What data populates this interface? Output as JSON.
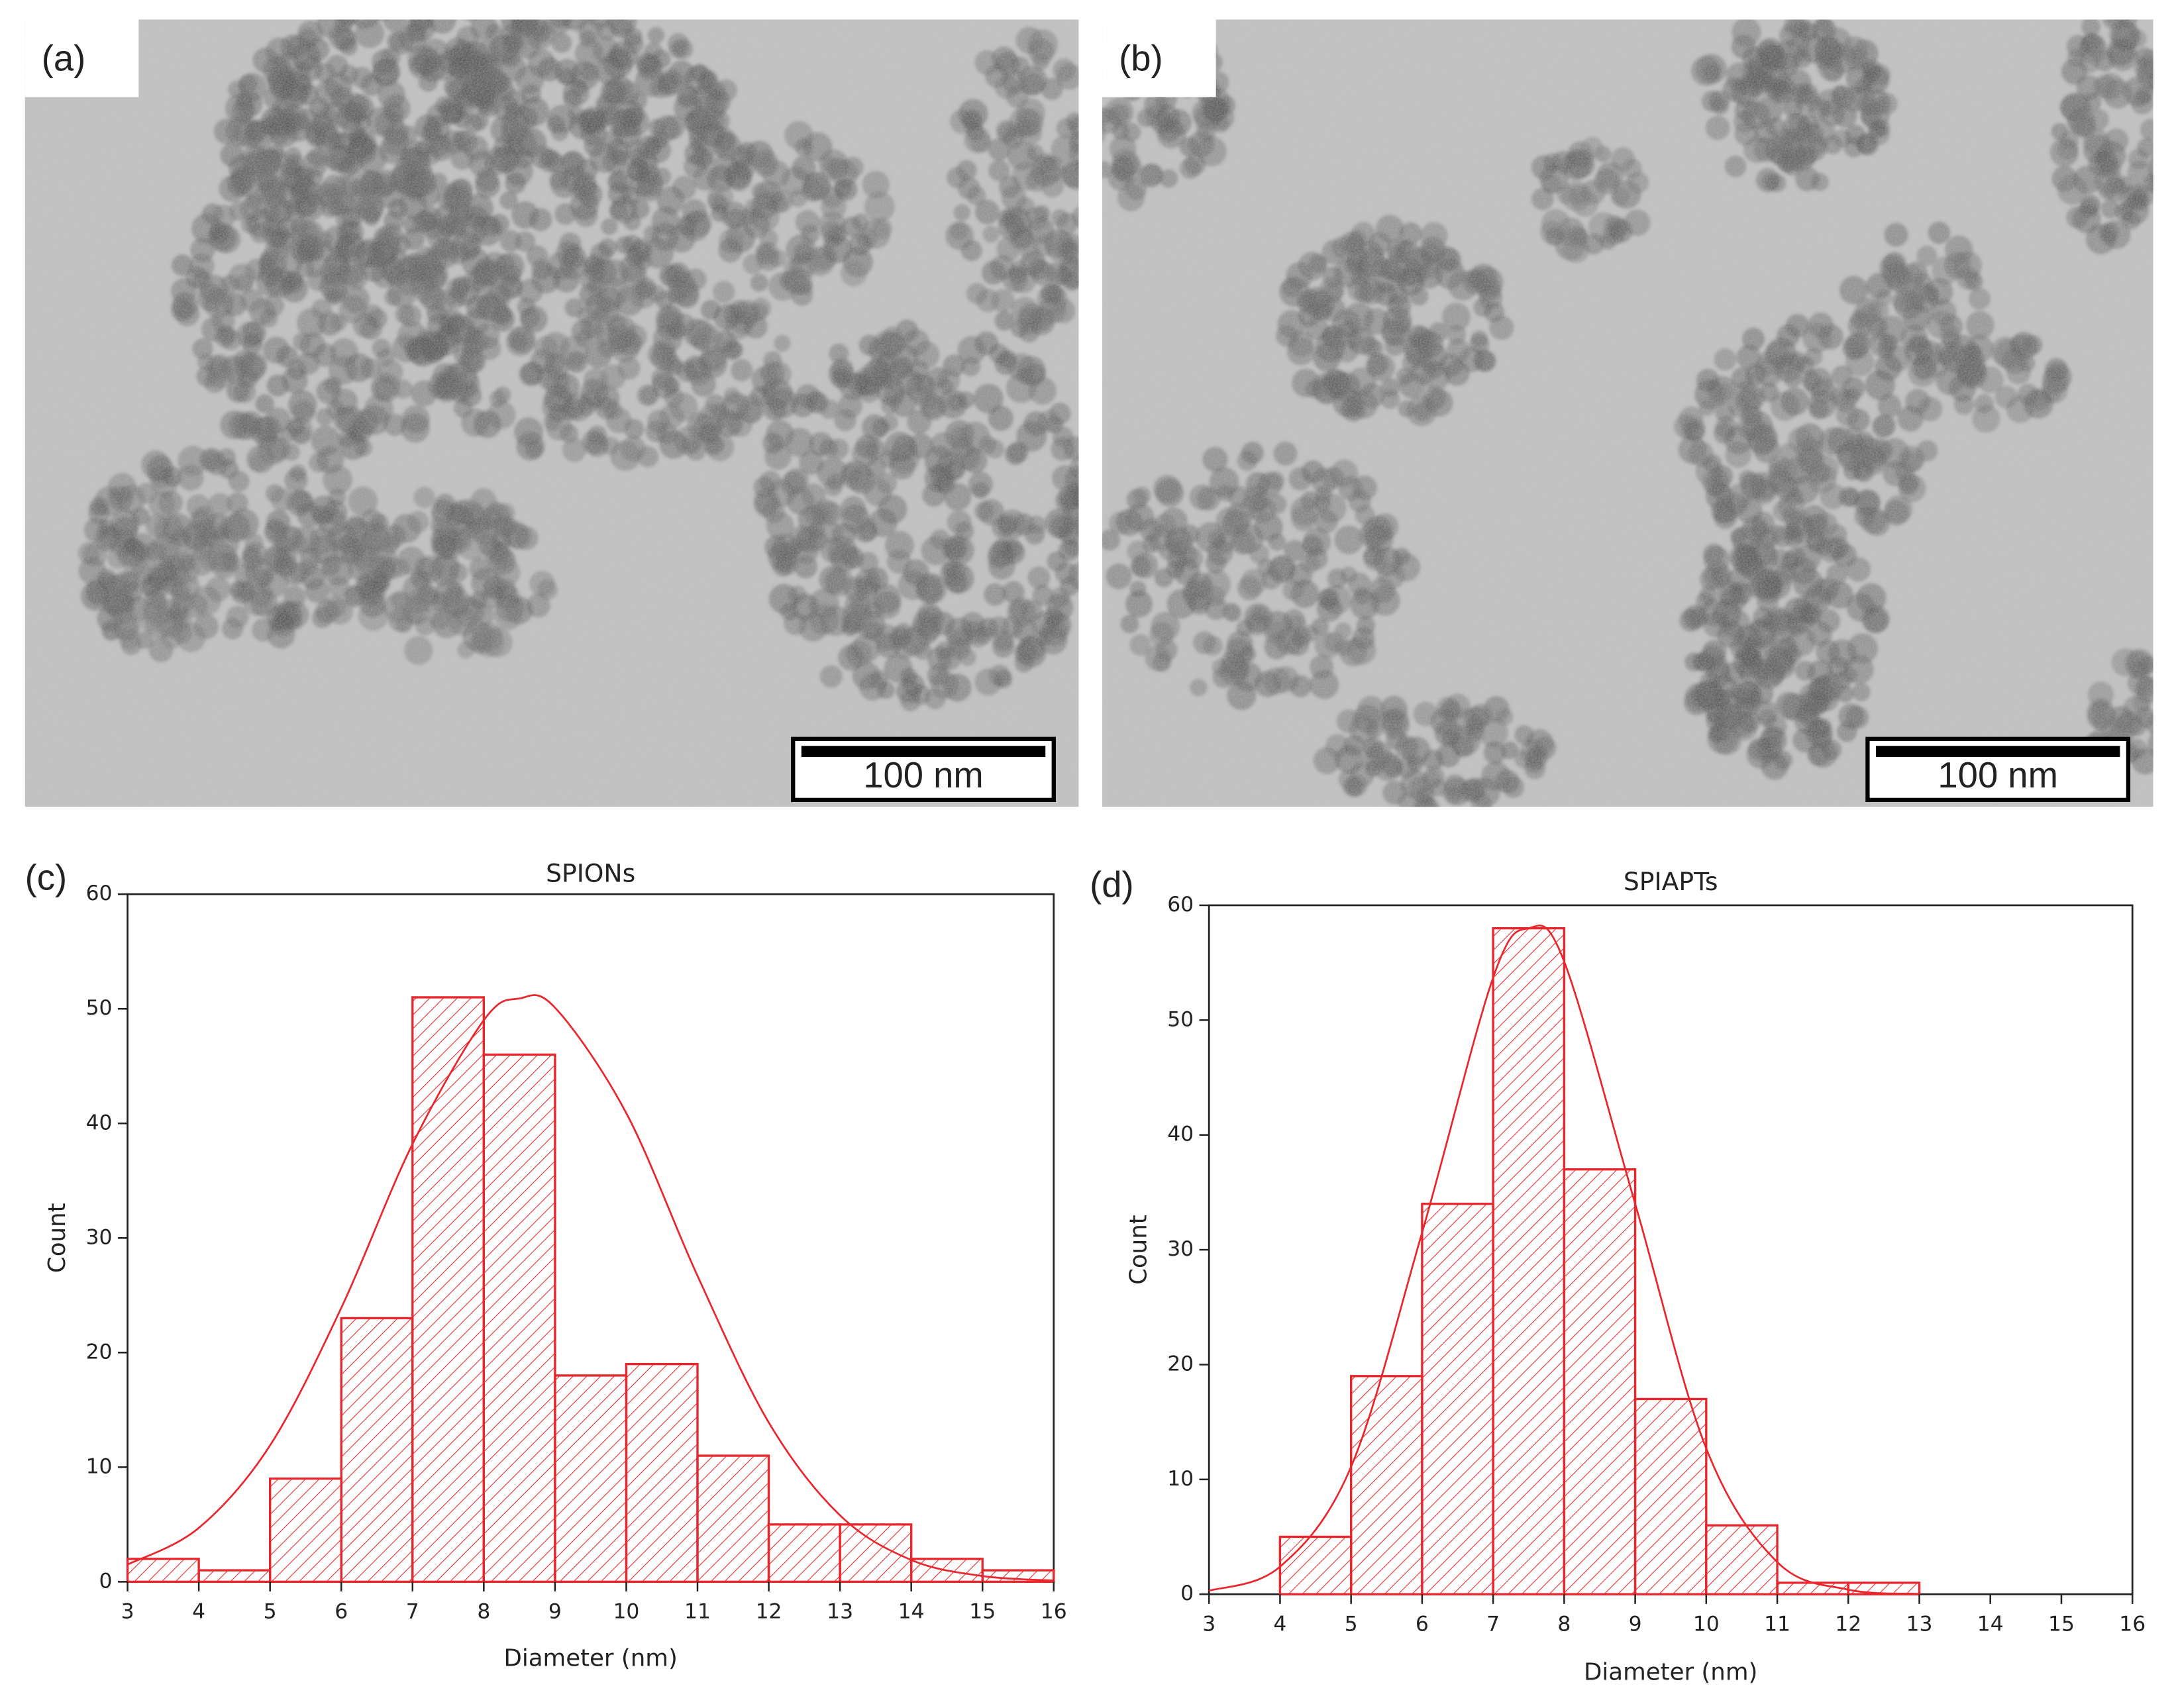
{
  "panels": [
    {
      "label": "(a)",
      "scale_bar": "100 nm"
    },
    {
      "label": "(b)",
      "scale_bar": "100 nm"
    }
  ],
  "chart_data": [
    {
      "type": "histogram",
      "panel_label": "(c)",
      "title": "SPIONs",
      "x_label": "Diameter (nm)",
      "y_label": "Count",
      "bins": [
        3,
        4,
        5,
        6,
        7,
        8,
        9,
        10,
        11,
        12,
        13,
        14,
        15,
        16
      ],
      "values": [
        2,
        1,
        9,
        23,
        51,
        46,
        18,
        19,
        11,
        5,
        5,
        2,
        1
      ],
      "color": "#e8262c",
      "hatch": true,
      "fit": {
        "x": [
          3,
          4,
          5,
          6,
          7,
          8,
          8.5,
          9,
          10,
          11,
          12,
          13,
          14,
          15,
          16
        ],
        "values": [
          1.5,
          4.7,
          11.9,
          23.9,
          38.2,
          49.0,
          50.9,
          50.1,
          40.9,
          26.7,
          13.9,
          5.8,
          1.9,
          0.5,
          0.1
        ]
      },
      "xlim": [
        3,
        16
      ],
      "xticks": [
        3,
        4,
        5,
        6,
        7,
        8,
        9,
        10,
        11,
        12,
        13,
        14,
        15,
        16
      ],
      "ylim": [
        0,
        60
      ],
      "yticks": [
        0,
        10,
        20,
        30,
        40,
        50,
        60
      ]
    },
    {
      "type": "histogram",
      "panel_label": "(d)",
      "title": "SPIAPTs",
      "x_label": "Diameter (nm)",
      "y_label": "Count",
      "bins": [
        4,
        5,
        6,
        7,
        8,
        9,
        10,
        11,
        12,
        13
      ],
      "values": [
        5,
        19,
        34,
        58,
        37,
        17,
        6,
        1,
        1
      ],
      "color": "#e8262c",
      "hatch": true,
      "fit": {
        "x": [
          3,
          4,
          5,
          6,
          7,
          7.5,
          8,
          9,
          10,
          11,
          12,
          13
        ],
        "values": [
          0.3,
          2.4,
          11.1,
          31.5,
          53.7,
          58,
          55.1,
          34.0,
          12.7,
          2.8,
          0.4,
          0.03
        ]
      },
      "xlim": [
        3,
        16
      ],
      "xticks": [
        3,
        4,
        5,
        6,
        7,
        8,
        9,
        10,
        11,
        12,
        13,
        14,
        15,
        16
      ],
      "ylim": [
        0,
        60
      ],
      "yticks": [
        0,
        10,
        20,
        30,
        40,
        50,
        60
      ]
    }
  ]
}
